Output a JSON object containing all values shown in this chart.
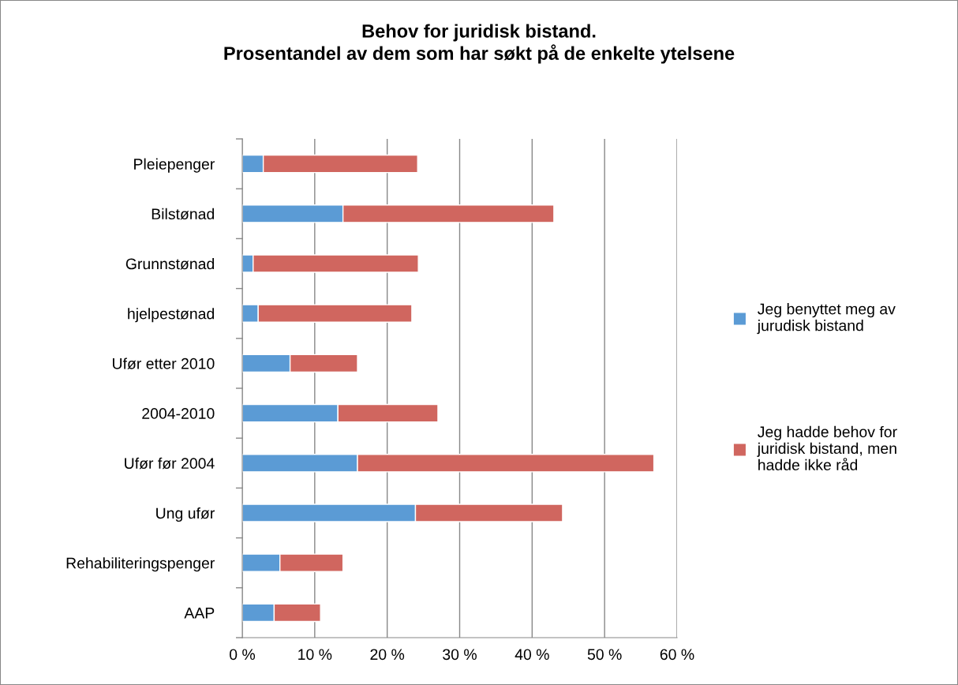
{
  "chart_data": {
    "type": "bar",
    "orientation": "horizontal",
    "stacked": true,
    "title": "Behov for juridisk bistand.\nProsentandel av dem som har søkt på de enkelte ytelsene",
    "categories": [
      "Pleiepenger",
      "Bilstønad",
      "Grunnstønad",
      "hjelpestønad",
      "Ufør etter 2010",
      "2004-2010",
      "Ufør før 2004",
      "Ung ufør",
      "Rehabiliteringspenger",
      "AAP"
    ],
    "series": [
      {
        "name": "Jeg benyttet meg av jurudisk bistand",
        "color": "#5b9bd5",
        "values": [
          2.9,
          13.9,
          1.5,
          2.2,
          6.6,
          13.2,
          15.9,
          23.9,
          5.2,
          4.4
        ]
      },
      {
        "name": "Jeg hadde behov for juridisk bistand, men hadde ikke råd",
        "color": "#d0665f",
        "values": [
          21.3,
          29.1,
          22.8,
          21.2,
          9.3,
          13.8,
          40.9,
          20.3,
          8.7,
          6.4
        ]
      }
    ],
    "xlim": [
      0,
      60
    ],
    "xticks": [
      {
        "value": 0,
        "label": "0 %"
      },
      {
        "value": 10,
        "label": "10 %"
      },
      {
        "value": 20,
        "label": "20 %"
      },
      {
        "value": 30,
        "label": "30 %"
      },
      {
        "value": 40,
        "label": "40 %"
      },
      {
        "value": 50,
        "label": "50 %"
      },
      {
        "value": 60,
        "label": "60 %"
      }
    ],
    "grid": "x",
    "legend": "right"
  }
}
